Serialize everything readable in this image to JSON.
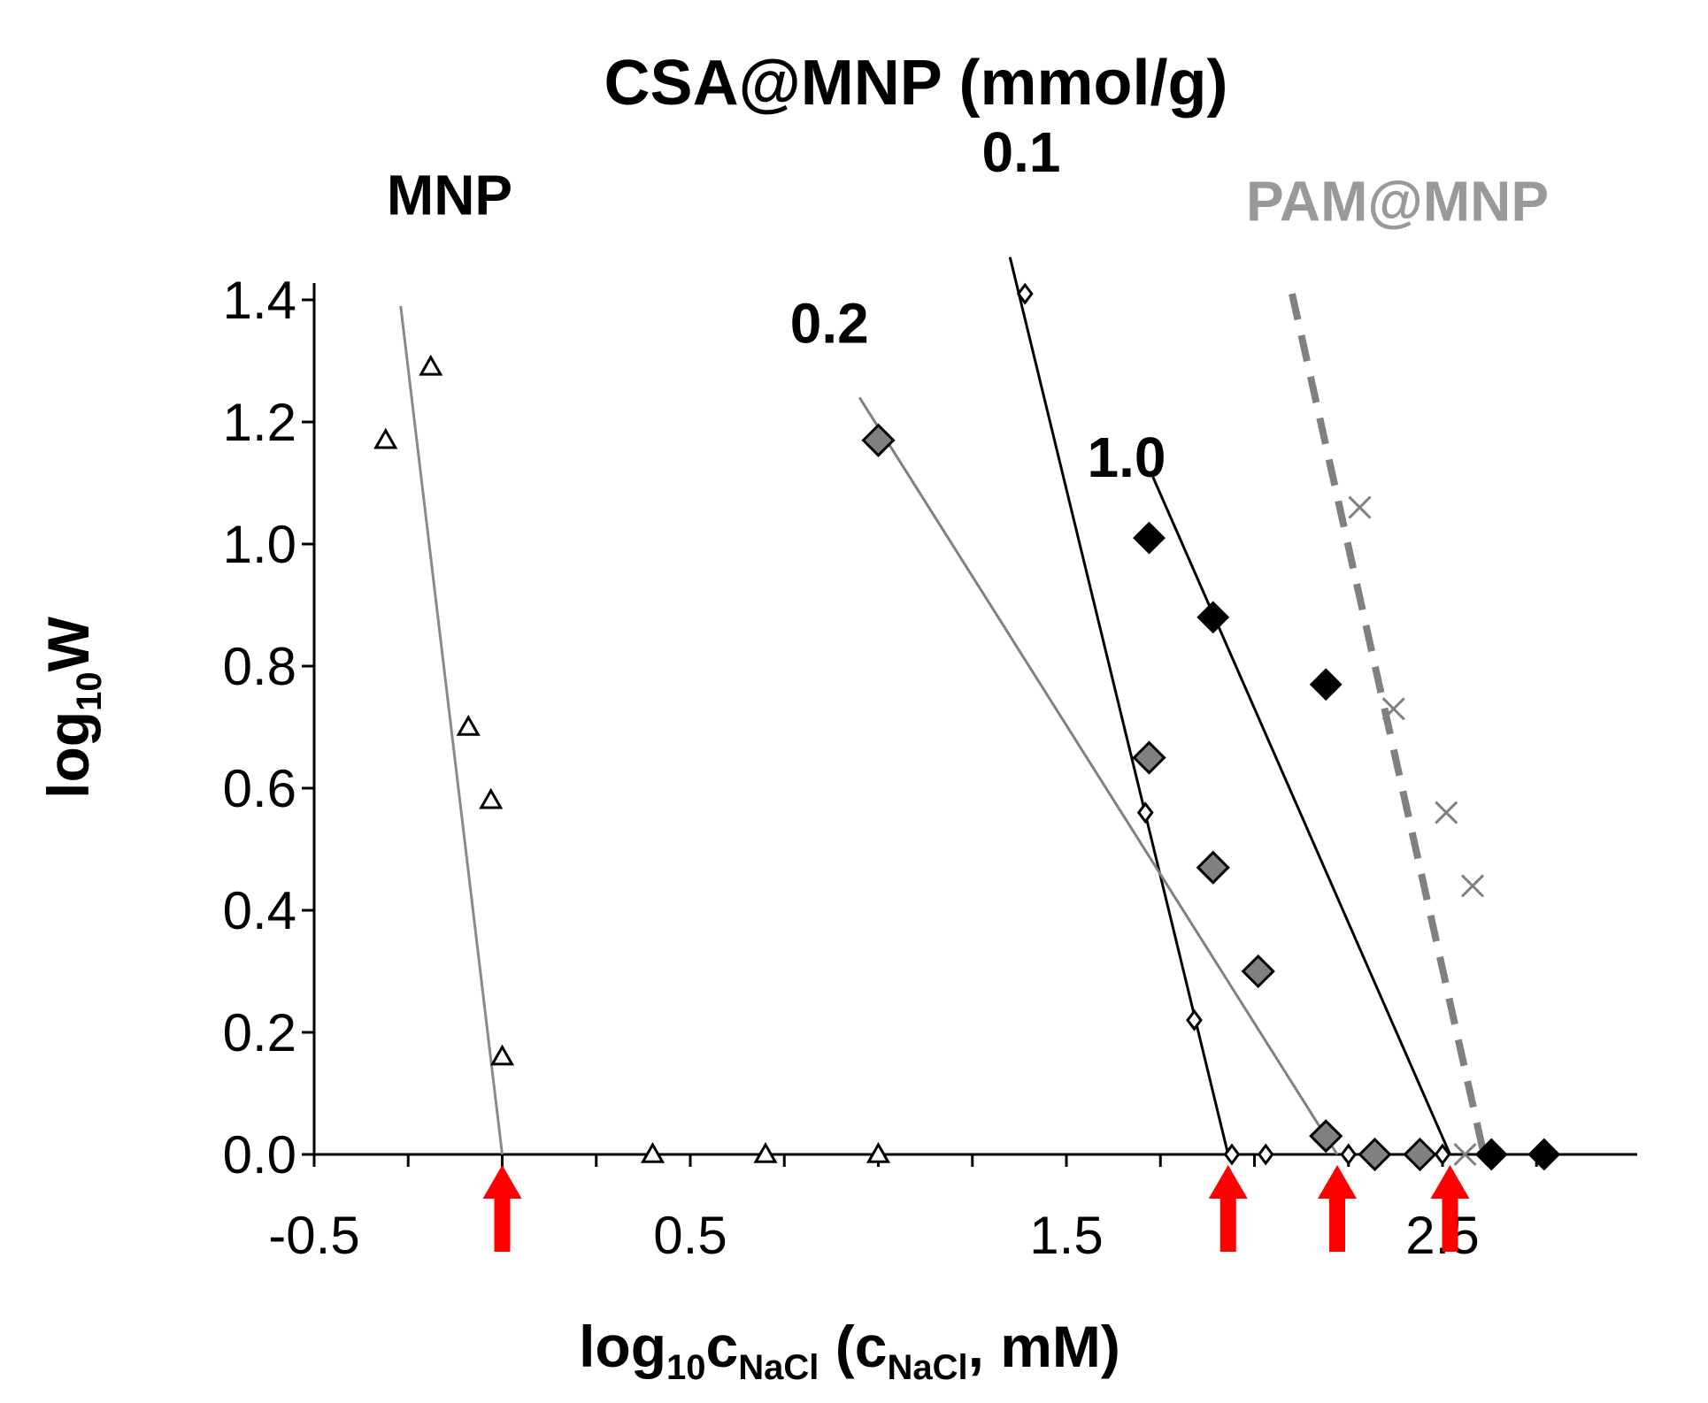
{
  "chart_data": {
    "type": "scatter",
    "title": "CSA@MNP (mmol/g)",
    "xlabel": {
      "main": "log",
      "sub": "10",
      "c": "c",
      "csub": "NaCl",
      "paren_open": " (c",
      "paren_sub": "NaCl",
      "paren_rest": ", mM)"
    },
    "ylabel": {
      "main": "log",
      "sub": "10",
      "rest": "W"
    },
    "xlim": [
      -0.5,
      2.85
    ],
    "ylim": [
      0.0,
      1.4
    ],
    "x_ticks": [
      -0.5,
      0.5,
      1.5,
      2.5
    ],
    "x_tick_labels": [
      "-0.5",
      "0.5",
      "1.5",
      "2.5"
    ],
    "x_minor_step": 0.25,
    "y_ticks": [
      0.0,
      0.2,
      0.4,
      0.6,
      0.8,
      1.0,
      1.2,
      1.4
    ],
    "y_tick_labels": [
      "0.0",
      "0.2",
      "0.4",
      "0.6",
      "0.8",
      "1.0",
      "1.2",
      "1.4"
    ],
    "series": [
      {
        "name": "MNP",
        "marker": "triangle-open",
        "color": "#000000",
        "points": [
          [
            -0.31,
            1.17
          ],
          [
            -0.19,
            1.29
          ],
          [
            -0.09,
            0.7
          ],
          [
            -0.03,
            0.58
          ],
          [
            0.0,
            0.16
          ],
          [
            0.4,
            0.0
          ],
          [
            0.7,
            0.0
          ],
          [
            1.0,
            0.0
          ]
        ],
        "fit": {
          "points": [
            [
              -0.27,
              1.39
            ],
            [
              0.0,
              0.0
            ]
          ],
          "color": "#888888",
          "dash": false
        }
      },
      {
        "name": "0.1",
        "marker": "diamond-open",
        "color": "#000000",
        "points": [
          [
            1.39,
            1.41
          ],
          [
            1.71,
            0.56
          ],
          [
            1.84,
            0.22
          ],
          [
            1.94,
            0.0
          ],
          [
            2.03,
            0.0
          ],
          [
            2.25,
            0.0
          ],
          [
            2.5,
            0.0
          ]
        ],
        "fit": {
          "points": [
            [
              1.35,
              1.47
            ],
            [
              1.93,
              0.0
            ]
          ],
          "color": "#000000",
          "dash": false
        }
      },
      {
        "name": "0.2",
        "marker": "diamond-gray",
        "color": "#808080",
        "points": [
          [
            1.0,
            1.17
          ],
          [
            1.72,
            0.65
          ],
          [
            1.89,
            0.47
          ],
          [
            2.01,
            0.3
          ],
          [
            2.19,
            0.03
          ],
          [
            2.32,
            0.0
          ],
          [
            2.44,
            0.0
          ]
        ],
        "fit": {
          "points": [
            [
              0.95,
              1.24
            ],
            [
              2.22,
              0.0
            ]
          ],
          "color": "#808080",
          "dash": false
        }
      },
      {
        "name": "1.0",
        "marker": "diamond-black",
        "color": "#000000",
        "points": [
          [
            1.72,
            1.01
          ],
          [
            1.89,
            0.88
          ],
          [
            2.19,
            0.77
          ],
          [
            2.63,
            0.0
          ],
          [
            2.77,
            0.0
          ]
        ],
        "fit": {
          "points": [
            [
              1.73,
              1.11
            ],
            [
              2.52,
              0.0
            ]
          ],
          "color": "#000000",
          "dash": false
        }
      },
      {
        "name": "PAM@MNP",
        "marker": "cross",
        "color": "#808080",
        "points": [
          [
            2.28,
            1.06
          ],
          [
            2.37,
            0.73
          ],
          [
            2.51,
            0.56
          ],
          [
            2.58,
            0.44
          ],
          [
            2.56,
            0.0
          ]
        ],
        "fit": {
          "points": [
            [
              2.1,
              1.41
            ],
            [
              2.61,
              0.0
            ]
          ],
          "color": "#808080",
          "dash": true
        }
      }
    ],
    "annotations": [
      {
        "text": "MNP",
        "x": -0.14,
        "y": 1.54,
        "color": "#000000"
      },
      {
        "text": "0.1",
        "x": 1.38,
        "y": 1.61,
        "color": "#000000"
      },
      {
        "text": "0.2",
        "x": 0.87,
        "y": 1.33,
        "color": "#000000"
      },
      {
        "text": "1.0",
        "x": 1.66,
        "y": 1.11,
        "color": "#000000"
      },
      {
        "text": "PAM@MNP",
        "x": 2.38,
        "y": 1.53,
        "color": "#999999"
      }
    ],
    "arrows": [
      {
        "x": 0.0,
        "color": "#ff0000"
      },
      {
        "x": 1.93,
        "color": "#ff0000"
      },
      {
        "x": 2.22,
        "color": "#ff0000"
      },
      {
        "x": 2.52,
        "color": "#ff0000"
      }
    ]
  }
}
